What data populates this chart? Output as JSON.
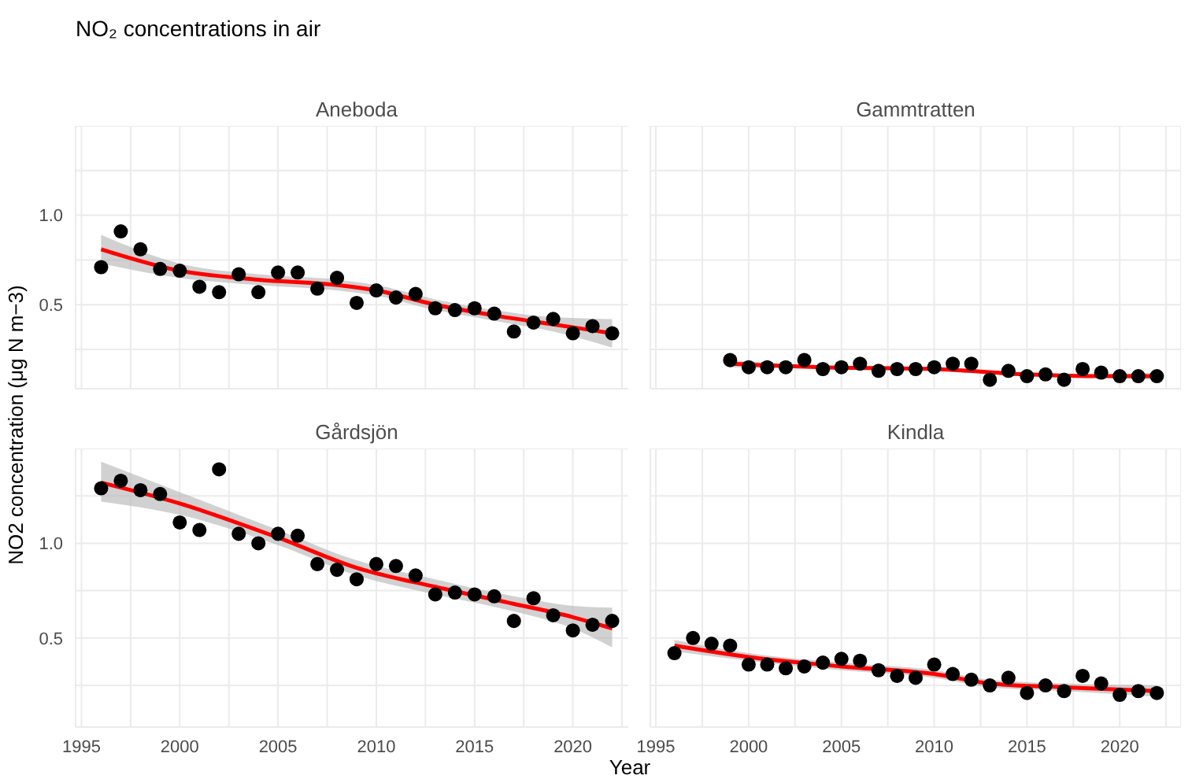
{
  "chart_data": [
    {
      "type": "scatter",
      "title": "Aneboda",
      "annotations": [
        "NO₂ concentrations in air"
      ],
      "xlabel": "Year",
      "ylabel": "NO2 concentration (μg N m−3)",
      "grid": true,
      "tick_labels": "y",
      "xlim": [
        1994.7,
        2023.3
      ],
      "xticks": [
        {
          "value": 1995,
          "label": null
        },
        {
          "value": 1997.5,
          "label": null
        },
        {
          "value": 2000,
          "label": null
        },
        {
          "value": 2002.5,
          "label": null
        },
        {
          "value": 2005,
          "label": null
        },
        {
          "value": 2007.5,
          "label": null
        },
        {
          "value": 2010,
          "label": null
        },
        {
          "value": 2012.5,
          "label": null
        },
        {
          "value": 2015,
          "label": null
        },
        {
          "value": 2017.5,
          "label": null
        },
        {
          "value": 2020,
          "label": null
        },
        {
          "value": 2022.5,
          "label": null
        }
      ],
      "ylim": [
        0.03,
        1.5
      ],
      "yticks": [
        {
          "value": 0.25,
          "label": null
        },
        {
          "value": 0.5,
          "label": "0.5"
        },
        {
          "value": 0.75,
          "label": null
        },
        {
          "value": 1,
          "label": "1.0"
        },
        {
          "value": 1.25,
          "label": null
        }
      ],
      "x": [
        1996,
        1997,
        1998,
        1999,
        2000,
        2001,
        2002,
        2003,
        2004,
        2005,
        2006,
        2007,
        2008,
        2009,
        2010,
        2011,
        2012,
        2013,
        2014,
        2015,
        2016,
        2017,
        2018,
        2019,
        2020,
        2021,
        2022
      ],
      "series": [
        {
          "color": "#000000",
          "marker": "circle",
          "values": [
            0.71,
            0.91,
            0.81,
            0.7,
            0.69,
            0.6,
            0.57,
            0.67,
            0.57,
            0.68,
            0.68,
            0.59,
            0.65,
            0.51,
            0.58,
            0.54,
            0.56,
            0.48,
            0.47,
            0.48,
            0.45,
            0.35,
            0.4,
            0.42,
            0.34,
            0.38,
            0.34
          ]
        },
        {
          "type": "line",
          "color": "#ff0000",
          "marker": "none",
          "x": [
            1996,
            2000,
            2004,
            2008,
            2010,
            2013,
            2016,
            2019,
            2022
          ],
          "values": [
            0.81,
            0.69,
            0.64,
            0.61,
            0.58,
            0.5,
            0.44,
            0.39,
            0.34
          ],
          "lower": [
            0.73,
            0.65,
            0.61,
            0.58,
            0.55,
            0.47,
            0.41,
            0.35,
            0.26
          ],
          "upper": [
            0.89,
            0.73,
            0.67,
            0.64,
            0.61,
            0.53,
            0.47,
            0.43,
            0.42
          ]
        }
      ]
    },
    {
      "type": "scatter",
      "title": "Gammtratten",
      "grid": true,
      "tick_labels": false,
      "xlim": [
        1994.7,
        2023.3
      ],
      "xticks": [
        {
          "value": 1995,
          "label": null
        },
        {
          "value": 1997.5,
          "label": null
        },
        {
          "value": 2000,
          "label": null
        },
        {
          "value": 2002.5,
          "label": null
        },
        {
          "value": 2005,
          "label": null
        },
        {
          "value": 2007.5,
          "label": null
        },
        {
          "value": 2010,
          "label": null
        },
        {
          "value": 2012.5,
          "label": null
        },
        {
          "value": 2015,
          "label": null
        },
        {
          "value": 2017.5,
          "label": null
        },
        {
          "value": 2020,
          "label": null
        },
        {
          "value": 2022.5,
          "label": null
        }
      ],
      "ylim": [
        0.03,
        1.5
      ],
      "yticks": [
        {
          "value": 0.25,
          "label": null
        },
        {
          "value": 0.5,
          "label": null
        },
        {
          "value": 0.75,
          "label": null
        },
        {
          "value": 1,
          "label": null
        },
        {
          "value": 1.25,
          "label": null
        }
      ],
      "x": [
        1999,
        2000,
        2001,
        2002,
        2003,
        2004,
        2005,
        2006,
        2007,
        2008,
        2009,
        2010,
        2011,
        2012,
        2013,
        2014,
        2015,
        2016,
        2017,
        2018,
        2019,
        2020,
        2021,
        2022
      ],
      "series": [
        {
          "color": "#000000",
          "marker": "circle",
          "values": [
            0.19,
            0.15,
            0.15,
            0.15,
            0.19,
            0.14,
            0.15,
            0.17,
            0.13,
            0.14,
            0.14,
            0.15,
            0.17,
            0.17,
            0.08,
            0.13,
            0.1,
            0.11,
            0.08,
            0.14,
            0.12,
            0.1,
            0.1,
            0.1
          ]
        },
        {
          "type": "line",
          "color": "#ff0000",
          "marker": "none",
          "x": [
            1999,
            2004,
            2010,
            2015,
            2019,
            2022
          ],
          "values": [
            0.17,
            0.15,
            0.14,
            0.11,
            0.1,
            0.1
          ],
          "lower": [
            0.15,
            0.14,
            0.13,
            0.1,
            0.09,
            0.08
          ],
          "upper": [
            0.19,
            0.16,
            0.15,
            0.12,
            0.11,
            0.12
          ]
        }
      ]
    },
    {
      "type": "scatter",
      "title": "Gårdsjön",
      "grid": true,
      "xlim": [
        1994.7,
        2023.3
      ],
      "xticks": [
        1995,
        {
          "value": 1997.5,
          "label": null
        },
        2000,
        {
          "value": 2002.5,
          "label": null
        },
        2005,
        {
          "value": 2007.5,
          "label": null
        },
        2010,
        {
          "value": 2012.5,
          "label": null
        },
        2015,
        {
          "value": 2017.5,
          "label": null
        },
        2020,
        {
          "value": 2022.5,
          "label": null
        }
      ],
      "ylim": [
        0.03,
        1.5
      ],
      "yticks": [
        {
          "value": 0.25,
          "label": null
        },
        {
          "value": 0.5,
          "label": "0.5"
        },
        {
          "value": 0.75,
          "label": null
        },
        {
          "value": 1,
          "label": "1.0"
        },
        {
          "value": 1.25,
          "label": null
        }
      ],
      "x": [
        1996,
        1997,
        1998,
        1999,
        2000,
        2001,
        2002,
        2003,
        2004,
        2005,
        2006,
        2007,
        2008,
        2009,
        2010,
        2011,
        2012,
        2013,
        2014,
        2015,
        2016,
        2017,
        2018,
        2019,
        2020,
        2021,
        2022
      ],
      "series": [
        {
          "color": "#000000",
          "marker": "circle",
          "values": [
            1.29,
            1.33,
            1.28,
            1.26,
            1.11,
            1.07,
            1.39,
            1.05,
            1.0,
            1.05,
            1.04,
            0.89,
            0.86,
            0.81,
            0.89,
            0.88,
            0.83,
            0.73,
            0.74,
            0.73,
            0.72,
            0.59,
            0.71,
            0.62,
            0.54,
            0.57,
            0.59
          ]
        },
        {
          "type": "line",
          "color": "#ff0000",
          "marker": "none",
          "x": [
            1996,
            2000,
            2005,
            2009,
            2013,
            2017,
            2020,
            2022
          ],
          "values": [
            1.32,
            1.21,
            1.03,
            0.87,
            0.77,
            0.68,
            0.61,
            0.55
          ],
          "lower": [
            1.22,
            1.15,
            0.99,
            0.83,
            0.73,
            0.64,
            0.55,
            0.45
          ],
          "upper": [
            1.43,
            1.27,
            1.07,
            0.91,
            0.81,
            0.72,
            0.67,
            0.66
          ]
        }
      ]
    },
    {
      "type": "scatter",
      "title": "Kindla",
      "grid": true,
      "tick_labels": "x",
      "xlim": [
        1994.7,
        2023.3
      ],
      "xticks": [
        1995,
        {
          "value": 1997.5,
          "label": null
        },
        2000,
        {
          "value": 2002.5,
          "label": null
        },
        2005,
        {
          "value": 2007.5,
          "label": null
        },
        2010,
        {
          "value": 2012.5,
          "label": null
        },
        2015,
        {
          "value": 2017.5,
          "label": null
        },
        2020,
        {
          "value": 2022.5,
          "label": null
        }
      ],
      "ylim": [
        0.03,
        1.5
      ],
      "yticks": [
        {
          "value": 0.25,
          "label": null
        },
        {
          "value": 0.5,
          "label": null
        },
        {
          "value": 0.75,
          "label": null
        },
        {
          "value": 1,
          "label": null
        },
        {
          "value": 1.25,
          "label": null
        }
      ],
      "x": [
        1996,
        1997,
        1998,
        1999,
        2000,
        2001,
        2002,
        2003,
        2004,
        2005,
        2006,
        2007,
        2008,
        2009,
        2010,
        2011,
        2012,
        2013,
        2014,
        2015,
        2016,
        2017,
        2018,
        2019,
        2020,
        2021,
        2022
      ],
      "series": [
        {
          "color": "#000000",
          "marker": "circle",
          "values": [
            0.42,
            0.5,
            0.47,
            0.46,
            0.36,
            0.36,
            0.34,
            0.35,
            0.37,
            0.39,
            0.38,
            0.33,
            0.3,
            0.29,
            0.36,
            0.31,
            0.28,
            0.25,
            0.29,
            0.21,
            0.25,
            0.22,
            0.3,
            0.26,
            0.2,
            0.22,
            0.21
          ]
        },
        {
          "type": "line",
          "color": "#ff0000",
          "marker": "none",
          "x": [
            1996,
            2000,
            2005,
            2010,
            2013,
            2017,
            2022
          ],
          "values": [
            0.46,
            0.4,
            0.35,
            0.31,
            0.26,
            0.24,
            0.22
          ],
          "lower": [
            0.43,
            0.38,
            0.33,
            0.29,
            0.24,
            0.22,
            0.19
          ],
          "upper": [
            0.49,
            0.42,
            0.37,
            0.33,
            0.28,
            0.26,
            0.25
          ]
        }
      ]
    }
  ]
}
